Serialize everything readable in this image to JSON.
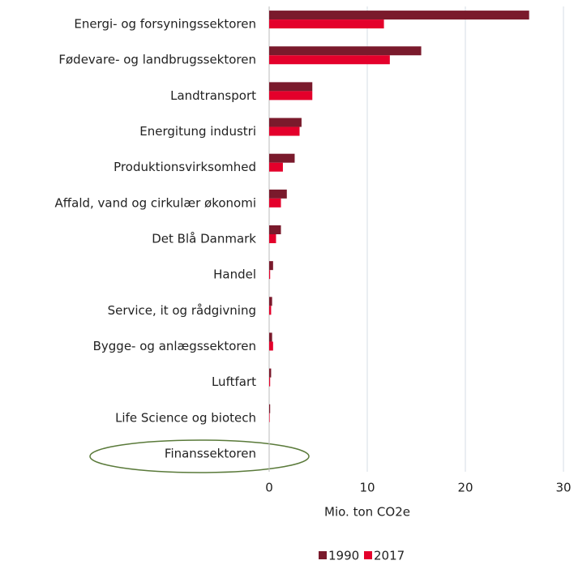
{
  "chart_data": {
    "type": "bar",
    "orientation": "horizontal",
    "categories": [
      "Energi- og forsyningssektoren",
      "Fødevare- og landbrugssektoren",
      "Landtransport",
      "Energitung industri",
      "Produktionsvirksomhed",
      "Affald, vand og cirkulær økonomi",
      "Det Blå Danmark",
      "Handel",
      "Service, it og rådgivning",
      "Bygge- og anlægssektoren",
      "Luftfart",
      "Life Science og biotech",
      "Finanssektoren"
    ],
    "series": [
      {
        "name": "1990",
        "color": "#7a1a2c",
        "values": [
          26.5,
          15.5,
          4.4,
          3.3,
          2.6,
          1.8,
          1.2,
          0.4,
          0.3,
          0.3,
          0.2,
          0.1,
          0
        ]
      },
      {
        "name": "2017",
        "color": "#e4002b",
        "values": [
          11.7,
          12.3,
          4.4,
          3.1,
          1.4,
          1.2,
          0.7,
          0.1,
          0.2,
          0.4,
          0.1,
          0.05,
          0
        ]
      }
    ],
    "x_label": "Mio. ton CO2e",
    "xlim": [
      0,
      30
    ],
    "xticks": [
      0,
      10,
      20,
      30
    ],
    "grid": true,
    "legend": "bottom"
  }
}
